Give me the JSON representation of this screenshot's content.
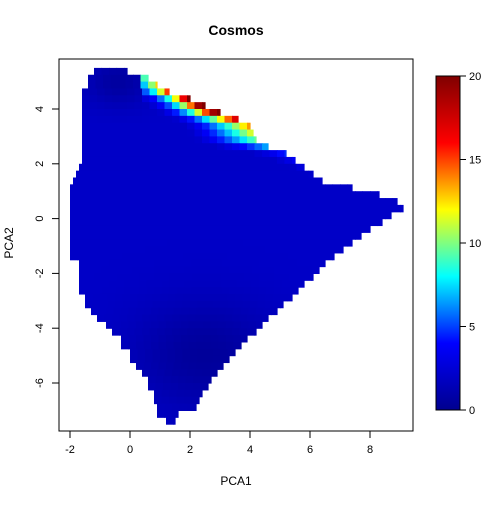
{
  "chart_data": {
    "type": "heatmap",
    "title": "Cosmos",
    "xlabel": "PCA1",
    "ylabel": "PCA2",
    "xlim": [
      -2.4,
      9.4
    ],
    "ylim": [
      -7.6,
      5.6
    ],
    "x_ticks": [
      -2,
      0,
      2,
      4,
      6,
      8
    ],
    "y_ticks": [
      -6,
      -4,
      -2,
      0,
      2,
      4
    ],
    "x_tick_labels": [
      "-2",
      "0",
      "2",
      "4",
      "6",
      "8"
    ],
    "y_tick_labels": [
      "-6",
      "-4",
      "-2",
      "0",
      "2",
      "4"
    ],
    "cell_size_data_units": 0.25,
    "colorbar": {
      "min": 0,
      "max": 20,
      "ticks": [
        0,
        5,
        10,
        15,
        20
      ],
      "tick_labels": [
        "0",
        "5",
        "10",
        "15",
        "20"
      ],
      "palette": [
        "#00008F",
        "#0000FF",
        "#00FFFF",
        "#FFFF00",
        "#FF0000",
        "#800000"
      ]
    },
    "region": {
      "description_rows": "PCA2 row centers from 5.375 down to -7.375; each row spans [x_start, x_end] in PCA1 data units",
      "rows": [
        [
          5.375,
          -1.2,
          -0.1
        ],
        [
          5.125,
          -1.4,
          0.6
        ],
        [
          4.875,
          -1.4,
          0.9
        ],
        [
          4.625,
          -1.6,
          1.3
        ],
        [
          4.375,
          -1.6,
          2.0
        ],
        [
          4.125,
          -1.6,
          2.5
        ],
        [
          3.875,
          -1.6,
          3.0
        ],
        [
          3.625,
          -1.6,
          3.6
        ],
        [
          3.375,
          -1.6,
          4.0
        ],
        [
          3.125,
          -1.6,
          4.1
        ],
        [
          2.875,
          -1.6,
          4.2
        ],
        [
          2.625,
          -1.6,
          4.6
        ],
        [
          2.375,
          -1.6,
          5.2
        ],
        [
          2.125,
          -1.6,
          5.5
        ],
        [
          1.875,
          -1.7,
          5.8
        ],
        [
          1.625,
          -1.8,
          6.1
        ],
        [
          1.375,
          -1.9,
          6.4
        ],
        [
          1.125,
          -2.0,
          7.4
        ],
        [
          0.875,
          -2.0,
          8.3
        ],
        [
          0.625,
          -2.0,
          8.9
        ],
        [
          0.375,
          -2.0,
          9.1
        ],
        [
          0.125,
          -2.0,
          8.7
        ],
        [
          -0.125,
          -2.0,
          8.4
        ],
        [
          -0.375,
          -2.0,
          8.0
        ],
        [
          -0.625,
          -2.0,
          7.7
        ],
        [
          -0.875,
          -2.0,
          7.4
        ],
        [
          -1.125,
          -2.0,
          7.1
        ],
        [
          -1.375,
          -2.0,
          6.8
        ],
        [
          -1.625,
          -1.7,
          6.5
        ],
        [
          -1.875,
          -1.7,
          6.3
        ],
        [
          -2.125,
          -1.7,
          6.1
        ],
        [
          -2.375,
          -1.7,
          5.8
        ],
        [
          -2.625,
          -1.7,
          5.6
        ],
        [
          -2.875,
          -1.5,
          5.4
        ],
        [
          -3.125,
          -1.5,
          5.1
        ],
        [
          -3.375,
          -1.3,
          4.9
        ],
        [
          -3.625,
          -1.1,
          4.6
        ],
        [
          -3.875,
          -0.8,
          4.4
        ],
        [
          -4.125,
          -0.6,
          4.2
        ],
        [
          -4.375,
          -0.3,
          3.9
        ],
        [
          -4.625,
          -0.3,
          3.7
        ],
        [
          -4.875,
          0.0,
          3.5
        ],
        [
          -5.125,
          0.0,
          3.3
        ],
        [
          -5.375,
          0.2,
          3.1
        ],
        [
          -5.625,
          0.4,
          2.9
        ],
        [
          -5.875,
          0.6,
          2.7
        ],
        [
          -6.125,
          0.6,
          2.6
        ],
        [
          -6.375,
          0.8,
          2.4
        ],
        [
          -6.625,
          0.8,
          2.3
        ],
        [
          -6.875,
          0.9,
          2.2
        ],
        [
          -7.125,
          0.9,
          1.6
        ],
        [
          -7.375,
          1.2,
          1.5
        ]
      ]
    },
    "peak": {
      "center": [
        2.3,
        3.7
      ],
      "max_value": 20,
      "ridge_description": "high values along upper boundary from PCA1 0.5 to 5.5"
    }
  }
}
